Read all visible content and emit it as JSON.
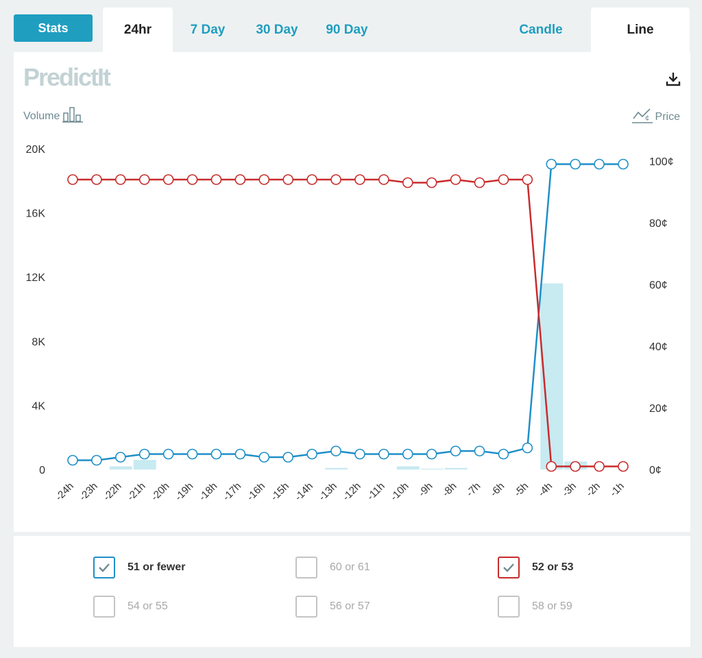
{
  "tabs": {
    "stats": "Stats",
    "ranges": [
      "24hr",
      "7 Day",
      "30 Day",
      "90 Day"
    ],
    "active_range": "24hr",
    "types": [
      "Candle",
      "Line"
    ],
    "active_type": "Line"
  },
  "header": {
    "logo": "PredictIt",
    "volume_label": "Volume",
    "price_label": "Price",
    "volume_icon": "bar-chart-icon",
    "price_icon": "price-trend-icon",
    "download_icon": "download-icon"
  },
  "colors": {
    "accent": "#1f9ec0",
    "series_blue": "#1e8fc8",
    "series_red": "#c82b2b",
    "volume_bar": "#c8eaf1"
  },
  "chart_data": {
    "type": "line",
    "x": [
      "-24h",
      "-23h",
      "-22h",
      "-21h",
      "-20h",
      "-19h",
      "-18h",
      "-17h",
      "-16h",
      "-15h",
      "-14h",
      "-13h",
      "-12h",
      "-11h",
      "-10h",
      "-9h",
      "-8h",
      "-7h",
      "-6h",
      "-5h",
      "-4h",
      "-3h",
      "-2h",
      "-1h"
    ],
    "left_axis": {
      "ticks": [
        "0",
        "4K",
        "8K",
        "12K",
        "16K",
        "20K"
      ],
      "range": [
        0,
        20000
      ]
    },
    "right_axis": {
      "ticks": [
        "0¢",
        "20¢",
        "40¢",
        "60¢",
        "80¢",
        "100¢"
      ],
      "range": [
        0,
        100
      ]
    },
    "series": [
      {
        "name": "51 or fewer",
        "color": "#1e8fc8",
        "axis": "right",
        "values": [
          3,
          3,
          4,
          5,
          5,
          5,
          5,
          5,
          4,
          4,
          5,
          6,
          5,
          5,
          5,
          5,
          6,
          6,
          5,
          7,
          99,
          99,
          99,
          99
        ]
      },
      {
        "name": "52 or 53",
        "color": "#c82b2b",
        "axis": "right",
        "values": [
          94,
          94,
          94,
          94,
          94,
          94,
          94,
          94,
          94,
          94,
          94,
          94,
          94,
          94,
          93,
          93,
          94,
          93,
          94,
          94,
          1,
          1,
          1,
          1
        ]
      }
    ],
    "volume": {
      "axis": "left",
      "color": "#c8eaf1",
      "values": [
        0,
        0,
        200,
        600,
        0,
        0,
        0,
        0,
        0,
        0,
        0,
        100,
        0,
        0,
        200,
        50,
        100,
        0,
        0,
        0,
        11600,
        500,
        0,
        0
      ]
    }
  },
  "legend": [
    {
      "label": "51 or fewer",
      "checked": true,
      "color": "#1e8fc8"
    },
    {
      "label": "60 or 61",
      "checked": false,
      "color": "#c4c4c4"
    },
    {
      "label": "52 or 53",
      "checked": true,
      "color": "#c82b2b"
    },
    {
      "label": "54 or 55",
      "checked": false,
      "color": "#c4c4c4"
    },
    {
      "label": "56 or 57",
      "checked": false,
      "color": "#c4c4c4"
    },
    {
      "label": "58 or 59",
      "checked": false,
      "color": "#c4c4c4"
    }
  ]
}
